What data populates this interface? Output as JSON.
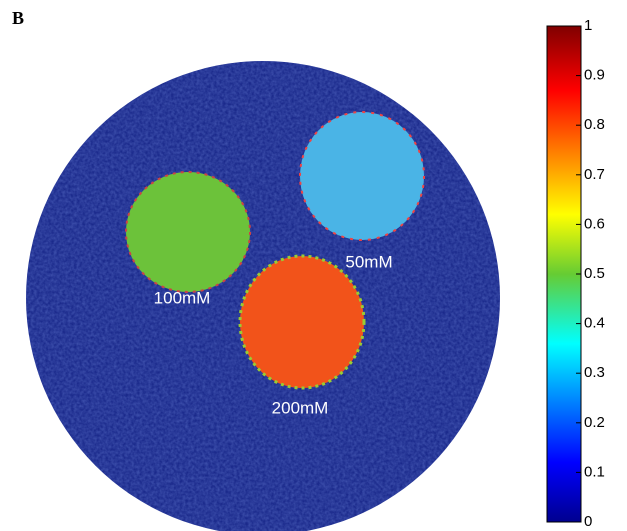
{
  "panel_label": "B",
  "labels": [
    "100mM",
    "50mM",
    "200mM"
  ],
  "colorbar": {
    "lim": [
      0,
      1
    ],
    "ticks": [
      0,
      0.1,
      0.2,
      0.3,
      0.4,
      0.5,
      0.6,
      0.7,
      0.8,
      0.9,
      1
    ]
  }
}
